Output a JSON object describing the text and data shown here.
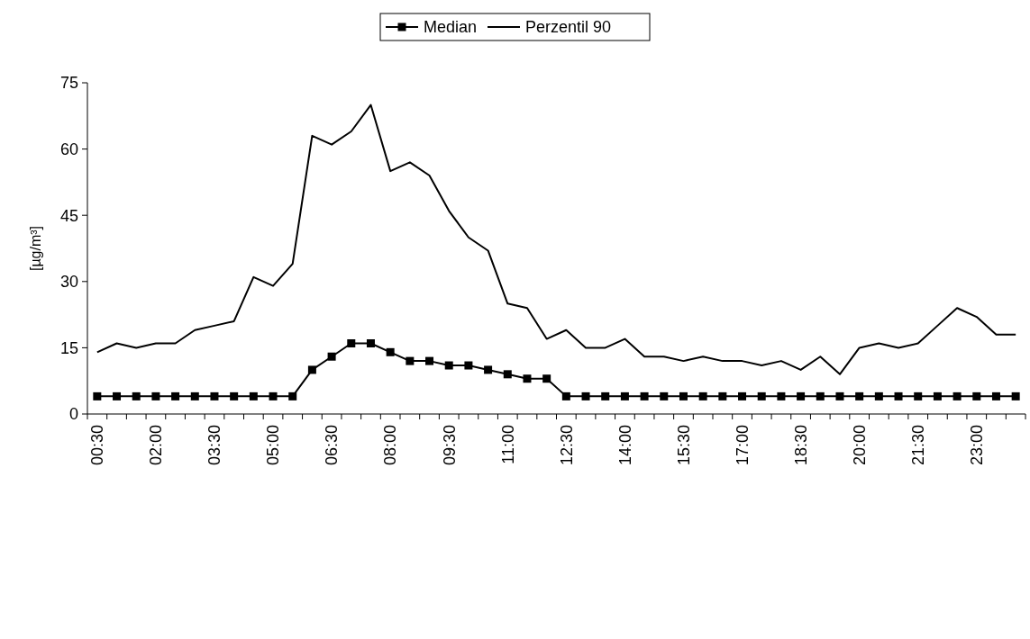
{
  "chart_data": {
    "type": "line",
    "ylabel": "[µg/m³]",
    "categories": [
      "00:30",
      null,
      null,
      "02:00",
      null,
      null,
      "03:30",
      null,
      null,
      "05:00",
      null,
      null,
      "06:30",
      null,
      null,
      "08:00",
      null,
      null,
      "09:30",
      null,
      null,
      "11:00",
      null,
      null,
      "12:30",
      null,
      null,
      "14:00",
      null,
      null,
      "15:30",
      null,
      null,
      "17:00",
      null,
      null,
      "18:30",
      null,
      null,
      "20:00",
      null,
      null,
      "21:30",
      null,
      null,
      "23:00",
      null,
      null
    ],
    "series": [
      {
        "name": "Median",
        "color": "#000000",
        "marker": "square",
        "values": [
          4,
          4,
          4,
          4,
          4,
          4,
          4,
          4,
          4,
          4,
          4,
          10,
          13,
          16,
          16,
          14,
          12,
          12,
          11,
          11,
          10,
          9,
          8,
          8,
          4,
          4,
          4,
          4,
          4,
          4,
          4,
          4,
          4,
          4,
          4,
          4,
          4,
          4,
          4,
          4,
          4,
          4,
          4,
          4,
          4,
          4,
          4,
          4
        ]
      },
      {
        "name": "Perzentil 90",
        "color": "#000000",
        "marker": "none",
        "values": [
          14,
          16,
          15,
          16,
          16,
          19,
          20,
          21,
          31,
          29,
          34,
          63,
          61,
          64,
          70,
          55,
          57,
          54,
          46,
          40,
          37,
          25,
          24,
          17,
          19,
          15,
          15,
          17,
          13,
          13,
          12,
          13,
          12,
          12,
          11,
          12,
          10,
          13,
          9,
          15,
          16,
          15,
          16,
          20,
          24,
          22,
          18,
          18
        ]
      }
    ],
    "ylim": [
      0,
      75
    ],
    "yticks": [
      0,
      15,
      30,
      45,
      60,
      75
    ],
    "legend": "top",
    "grid": false
  }
}
